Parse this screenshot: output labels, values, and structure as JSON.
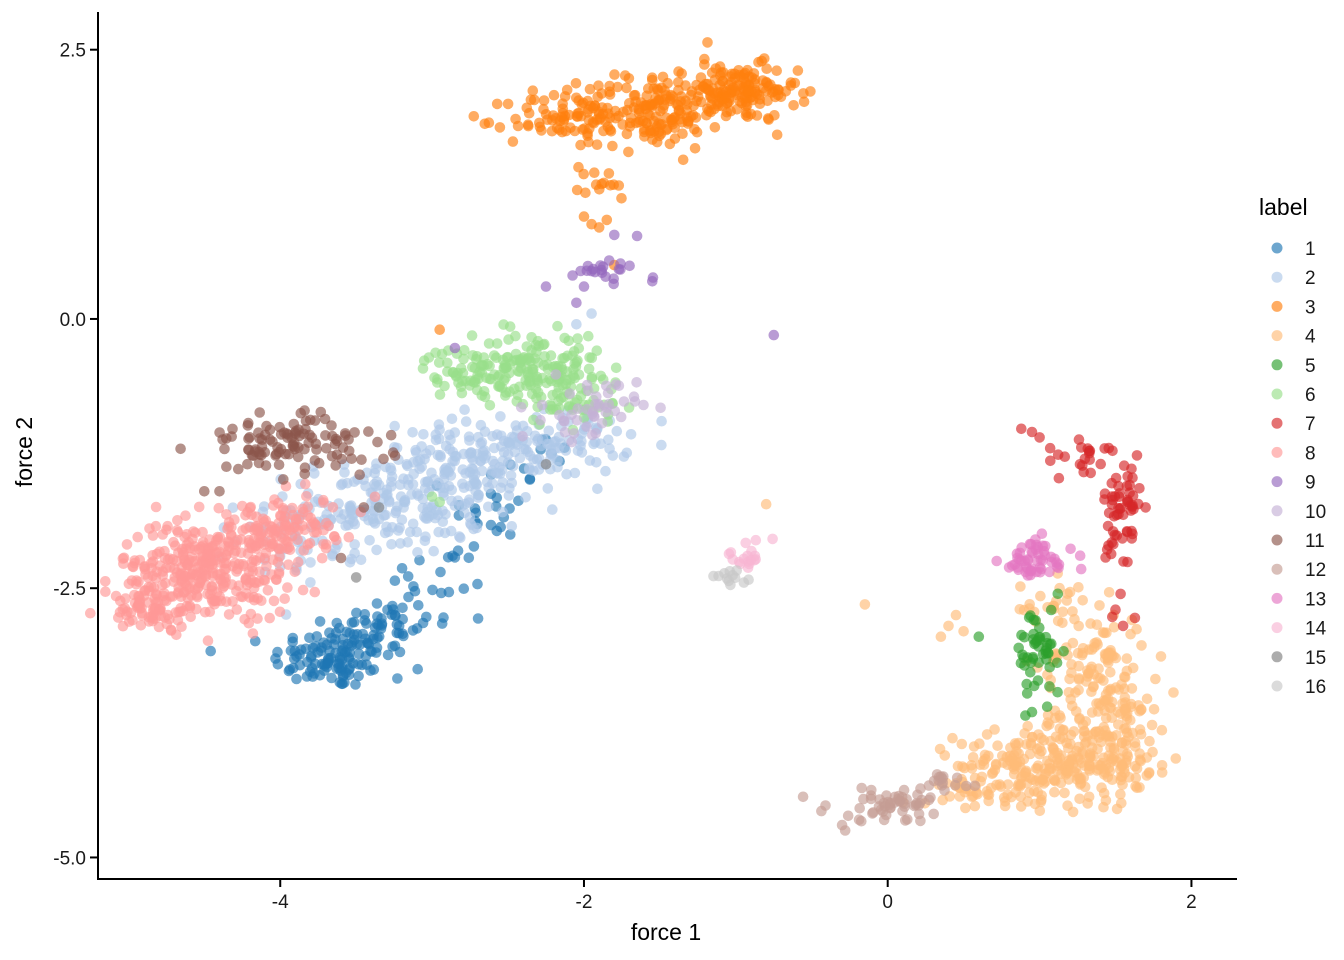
{
  "chart_data": {
    "type": "scatter",
    "xlabel": "force 1",
    "ylabel": "force 2",
    "xlim": [
      -5.2,
      2.3
    ],
    "ylim": [
      -5.2,
      2.85
    ],
    "xticks": [
      -4,
      -2,
      0,
      2
    ],
    "xtick_labels": [
      "-4",
      "-2",
      "0",
      "2"
    ],
    "yticks": [
      2.5,
      0.0,
      -2.5,
      -5.0
    ],
    "ytick_labels": [
      "2.5",
      "0.0",
      "-2.5",
      "-5.0"
    ],
    "grid": false,
    "legend": {
      "title": "label",
      "position": "right",
      "entries": [
        "1",
        "2",
        "3",
        "4",
        "5",
        "6",
        "7",
        "8",
        "9",
        "10",
        "11",
        "12",
        "13",
        "14",
        "15",
        "16"
      ]
    },
    "point_opacity": 0.65,
    "colors": {
      "1": "#1f77b4",
      "2": "#aec7e8",
      "3": "#ff7f0e",
      "4": "#ffbb78",
      "5": "#2ca02c",
      "6": "#98df8a",
      "7": "#d62728",
      "8": "#ff9896",
      "9": "#9467bd",
      "10": "#c5b0d5",
      "11": "#8c564b",
      "12": "#c49c94",
      "13": "#e377c2",
      "14": "#f7b6d2",
      "15": "#7f7f7f",
      "16": "#c7c7c7"
    },
    "series": [
      {
        "name": "1",
        "clusters": [
          {
            "cx": -3.65,
            "cy": -3.15,
            "sx": 0.2,
            "sy": 0.14,
            "n": 110
          },
          {
            "cx": -3.35,
            "cy": -2.85,
            "sx": 0.18,
            "sy": 0.14,
            "n": 50
          },
          {
            "cx": -2.95,
            "cy": -2.5,
            "sx": 0.18,
            "sy": 0.2,
            "n": 22
          },
          {
            "cx": -2.6,
            "cy": -1.8,
            "sx": 0.15,
            "sy": 0.25,
            "n": 22
          },
          {
            "cx": -2.3,
            "cy": -1.3,
            "sx": 0.12,
            "sy": 0.12,
            "n": 8
          }
        ],
        "extra": []
      },
      {
        "name": "2",
        "clusters": [
          {
            "cx": -3.3,
            "cy": -1.75,
            "sx": 0.32,
            "sy": 0.22,
            "n": 170
          },
          {
            "cx": -2.75,
            "cy": -1.35,
            "sx": 0.3,
            "sy": 0.2,
            "n": 150
          },
          {
            "cx": -2.15,
            "cy": -1.15,
            "sx": 0.22,
            "sy": 0.15,
            "n": 80
          },
          {
            "cx": -3.85,
            "cy": -2.05,
            "sx": 0.22,
            "sy": 0.18,
            "n": 40
          }
        ],
        "extra": [
          [
            -2.05,
            -0.05
          ],
          [
            -1.95,
            0.05
          ],
          [
            -4.1,
            -2.35
          ],
          [
            -4.0,
            -2.3
          ]
        ]
      },
      {
        "name": "3",
        "clusters": [
          {
            "cx": -1.0,
            "cy": 2.1,
            "sx": 0.2,
            "sy": 0.13,
            "n": 160
          },
          {
            "cx": -1.55,
            "cy": 1.95,
            "sx": 0.22,
            "sy": 0.18,
            "n": 140
          },
          {
            "cx": -2.1,
            "cy": 1.85,
            "sx": 0.2,
            "sy": 0.13,
            "n": 80
          },
          {
            "cx": -1.95,
            "cy": 1.25,
            "sx": 0.18,
            "sy": 0.08,
            "n": 14
          }
        ],
        "extra": [
          [
            -2.0,
            0.95
          ],
          [
            -1.95,
            0.88
          ],
          [
            -1.9,
            0.85
          ],
          [
            -1.85,
            0.92
          ],
          [
            -2.95,
            -0.1
          ],
          [
            -1.8,
            0.5
          ]
        ]
      },
      {
        "name": "4",
        "clusters": [
          {
            "cx": 1.45,
            "cy": -3.9,
            "sx": 0.22,
            "sy": 0.28,
            "n": 180
          },
          {
            "cx": 1.0,
            "cy": -4.15,
            "sx": 0.28,
            "sy": 0.16,
            "n": 180
          },
          {
            "cx": 1.35,
            "cy": -3.2,
            "sx": 0.18,
            "sy": 0.25,
            "n": 90
          },
          {
            "cx": 0.6,
            "cy": -4.35,
            "sx": 0.12,
            "sy": 0.08,
            "n": 30
          },
          {
            "cx": 1.05,
            "cy": -2.65,
            "sx": 0.12,
            "sy": 0.12,
            "n": 25
          }
        ],
        "extra": [
          [
            -0.8,
            -1.72
          ],
          [
            -0.15,
            -2.65
          ],
          [
            0.4,
            -2.85
          ],
          [
            0.5,
            -2.9
          ],
          [
            0.35,
            -2.95
          ],
          [
            0.45,
            -2.75
          ]
        ]
      },
      {
        "name": "5",
        "clusters": [
          {
            "cx": 1.0,
            "cy": -3.1,
            "sx": 0.08,
            "sy": 0.22,
            "n": 50
          }
        ],
        "extra": [
          [
            0.6,
            -2.95
          ],
          [
            0.95,
            -3.65
          ],
          [
            1.05,
            -3.6
          ]
        ]
      },
      {
        "name": "6",
        "clusters": [
          {
            "cx": -2.3,
            "cy": -0.45,
            "sx": 0.2,
            "sy": 0.16,
            "n": 140
          },
          {
            "cx": -2.75,
            "cy": -0.5,
            "sx": 0.15,
            "sy": 0.12,
            "n": 60
          },
          {
            "cx": -2.1,
            "cy": -0.75,
            "sx": 0.18,
            "sy": 0.12,
            "n": 40
          }
        ],
        "extra": [
          [
            -3.0,
            -1.65
          ],
          [
            -2.95,
            -1.7
          ]
        ]
      },
      {
        "name": "7",
        "clusters": [
          {
            "cx": 1.55,
            "cy": -1.85,
            "sx": 0.06,
            "sy": 0.35,
            "n": 60
          },
          {
            "cx": 1.25,
            "cy": -1.3,
            "sx": 0.15,
            "sy": 0.1,
            "n": 20
          }
        ],
        "extra": [
          [
            0.88,
            -1.02
          ],
          [
            0.95,
            -1.05
          ],
          [
            1.0,
            -1.1
          ],
          [
            1.07,
            -1.2
          ],
          [
            1.5,
            -2.7
          ],
          [
            1.55,
            -2.85
          ]
        ]
      },
      {
        "name": "8",
        "clusters": [
          {
            "cx": -4.5,
            "cy": -2.35,
            "sx": 0.28,
            "sy": 0.22,
            "n": 320
          },
          {
            "cx": -4.85,
            "cy": -2.7,
            "sx": 0.12,
            "sy": 0.1,
            "n": 50
          },
          {
            "cx": -4.1,
            "cy": -2.0,
            "sx": 0.2,
            "sy": 0.16,
            "n": 110
          },
          {
            "cx": -3.8,
            "cy": -1.85,
            "sx": 0.14,
            "sy": 0.1,
            "n": 25
          }
        ],
        "extra": []
      },
      {
        "name": "9",
        "clusters": [
          {
            "cx": -1.85,
            "cy": 0.45,
            "sx": 0.12,
            "sy": 0.05,
            "n": 20
          }
        ],
        "extra": [
          [
            -1.8,
            0.78
          ],
          [
            -1.65,
            0.77
          ],
          [
            -2.0,
            0.3
          ],
          [
            -2.05,
            0.15
          ],
          [
            -2.25,
            0.3
          ],
          [
            -2.85,
            -0.27
          ],
          [
            -0.75,
            -0.15
          ],
          [
            -1.55,
            0.35
          ]
        ]
      },
      {
        "name": "10",
        "clusters": [
          {
            "cx": -1.95,
            "cy": -0.85,
            "sx": 0.15,
            "sy": 0.14,
            "n": 45
          }
        ],
        "extra": []
      },
      {
        "name": "11",
        "clusters": [
          {
            "cx": -4.0,
            "cy": -1.15,
            "sx": 0.26,
            "sy": 0.14,
            "n": 90
          },
          {
            "cx": -3.55,
            "cy": -1.2,
            "sx": 0.14,
            "sy": 0.1,
            "n": 20
          }
        ],
        "extra": [
          [
            -4.5,
            -1.6
          ],
          [
            -4.4,
            -1.6
          ],
          [
            -3.6,
            -2.22
          ],
          [
            -3.45,
            -1.75
          ]
        ]
      },
      {
        "name": "12",
        "clusters": [
          {
            "cx": 0.05,
            "cy": -4.5,
            "sx": 0.22,
            "sy": 0.08,
            "n": 55
          },
          {
            "cx": 0.35,
            "cy": -4.3,
            "sx": 0.1,
            "sy": 0.06,
            "n": 15
          }
        ],
        "extra": [
          [
            -0.3,
            -4.7
          ],
          [
            -0.28,
            -4.75
          ]
        ]
      },
      {
        "name": "13",
        "clusters": [
          {
            "cx": 0.98,
            "cy": -2.25,
            "sx": 0.12,
            "sy": 0.1,
            "n": 55
          }
        ],
        "extra": []
      },
      {
        "name": "14",
        "clusters": [
          {
            "cx": -0.95,
            "cy": -2.2,
            "sx": 0.1,
            "sy": 0.07,
            "n": 18
          }
        ],
        "extra": []
      },
      {
        "name": "15",
        "clusters": [],
        "extra": [
          [
            -3.5,
            -2.4
          ],
          [
            -3.35,
            -1.75
          ],
          [
            -2.25,
            -1.35
          ]
        ]
      },
      {
        "name": "16",
        "clusters": [
          {
            "cx": -1.0,
            "cy": -2.4,
            "sx": 0.07,
            "sy": 0.04,
            "n": 12
          }
        ],
        "extra": []
      }
    ]
  }
}
